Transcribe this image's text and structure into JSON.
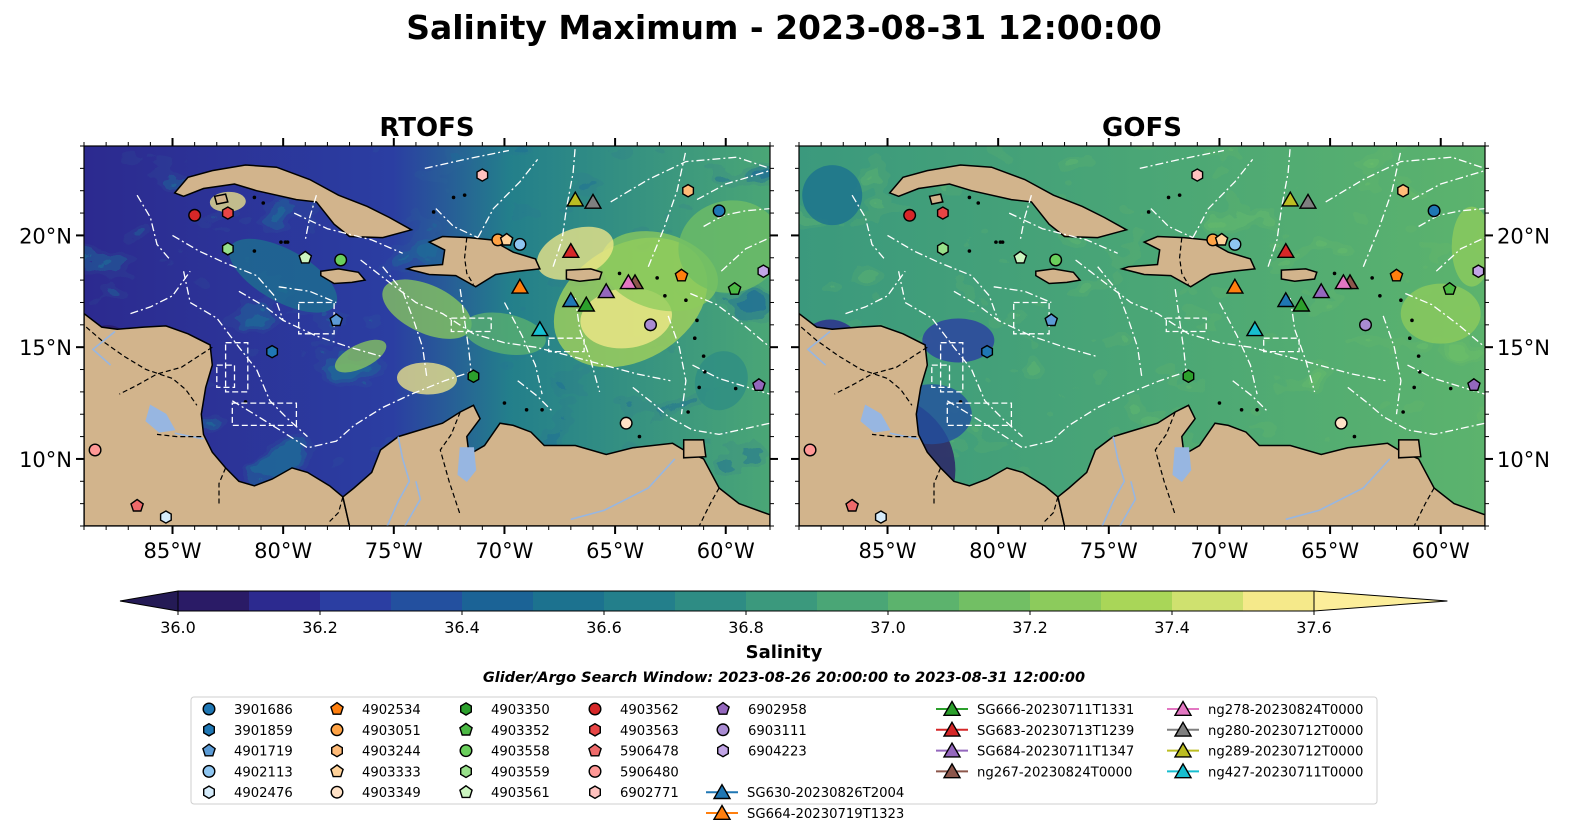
{
  "figure": {
    "title": "Salinity Maximum - 2023-08-31 12:00:00",
    "search_window": "Glider/Argo Search Window: 2023-08-26 20:00:00 to 2023-08-31 12:00:00"
  },
  "colors": {
    "land": "#d2b48c",
    "water_features": "#97b6e1",
    "eez_lines": "#ffffff",
    "coast": "#000000"
  },
  "chart_data": {
    "type": "heatmap",
    "variable": "Salinity",
    "extent": {
      "lon": [
        -89,
        -58
      ],
      "lat": [
        7,
        24
      ]
    },
    "panels": [
      {
        "title": "RTOFS",
        "model": "rtofs",
        "ytick_side": "left"
      },
      {
        "title": "GOFS",
        "model": "gofs",
        "ytick_side": "right"
      }
    ],
    "xticks": [
      -85,
      -80,
      -75,
      -70,
      -65,
      -60
    ],
    "xtick_labels": [
      "85°W",
      "80°W",
      "75°W",
      "70°W",
      "65°W",
      "60°W"
    ],
    "yticks": [
      10,
      15,
      20
    ],
    "ytick_labels": [
      "10°N",
      "15°N",
      "20°N"
    ],
    "colorbar": {
      "label": "Salinity",
      "min": 36.0,
      "max": 37.6,
      "step": 0.1,
      "extend": "both",
      "ticks": [
        36.0,
        36.2,
        36.4,
        36.6,
        36.8,
        37.0,
        37.2,
        37.4,
        37.6
      ],
      "tick_labels": [
        "36.0",
        "36.2",
        "36.4",
        "36.6",
        "36.8",
        "37.0",
        "37.2",
        "37.4",
        "37.6"
      ],
      "colors": [
        "#2a1b66",
        "#2c2a8f",
        "#2b3ea2",
        "#23509f",
        "#1b6396",
        "#1c728f",
        "#237f8b",
        "#2e8c84",
        "#3b997d",
        "#4aa676",
        "#5cb36d",
        "#72bf64",
        "#8ccb5c",
        "#a9d658",
        "#cfe16f",
        "#f5e98a"
      ],
      "under_color": "#241a55",
      "over_color": "#fcee9a"
    },
    "legend": {
      "argo": [
        {
          "id": "3901686",
          "marker": "circle",
          "color": "#1f77b4",
          "lon": -60.3,
          "lat": 21.1
        },
        {
          "id": "3901859",
          "marker": "hexagon",
          "color": "#1f77b4",
          "lon": -80.5,
          "lat": 14.8
        },
        {
          "id": "4901719",
          "marker": "pentagon",
          "color": "#5b9bd5",
          "lon": -77.6,
          "lat": 16.2
        },
        {
          "id": "4902113",
          "marker": "circle",
          "color": "#8ec5f0",
          "lon": -69.3,
          "lat": 19.6
        },
        {
          "id": "4902476",
          "marker": "hexagon",
          "color": "#d6ecfb",
          "lon": -85.3,
          "lat": 7.4
        },
        {
          "id": "4902534",
          "marker": "pentagon",
          "color": "#ff7f0e",
          "lon": -62.0,
          "lat": 18.2
        },
        {
          "id": "4903051",
          "marker": "circle",
          "color": "#ffa345",
          "lon": -70.3,
          "lat": 19.8
        },
        {
          "id": "4903244",
          "marker": "hexagon",
          "color": "#ffbb78",
          "lon": -61.7,
          "lat": 22.0
        },
        {
          "id": "4903333",
          "marker": "pentagon",
          "color": "#ffd29a",
          "lon": -69.9,
          "lat": 19.8
        },
        {
          "id": "4903349",
          "marker": "circle",
          "color": "#ffe2c7",
          "lon": -64.5,
          "lat": 11.6
        },
        {
          "id": "4903350",
          "marker": "hexagon",
          "color": "#2ca02c",
          "lon": -71.4,
          "lat": 13.7
        },
        {
          "id": "4903352",
          "marker": "pentagon",
          "color": "#4cb944",
          "lon": -59.6,
          "lat": 17.6
        },
        {
          "id": "4903558",
          "marker": "circle",
          "color": "#6acf5c",
          "lon": -77.4,
          "lat": 18.9
        },
        {
          "id": "4903559",
          "marker": "hexagon",
          "color": "#98df8a",
          "lon": -82.5,
          "lat": 19.4
        },
        {
          "id": "4903561",
          "marker": "pentagon",
          "color": "#ccf5c0",
          "lon": -79.0,
          "lat": 19.0
        },
        {
          "id": "4903562",
          "marker": "circle",
          "color": "#d62728",
          "lon": -84.0,
          "lat": 20.9
        },
        {
          "id": "4903563",
          "marker": "hexagon",
          "color": "#e84545",
          "lon": -82.5,
          "lat": 21.0
        },
        {
          "id": "5906478",
          "marker": "pentagon",
          "color": "#ee6a6a",
          "lon": -86.6,
          "lat": 7.9
        },
        {
          "id": "5906480",
          "marker": "circle",
          "color": "#ff9896",
          "lon": -88.5,
          "lat": 10.4
        },
        {
          "id": "6902771",
          "marker": "hexagon",
          "color": "#ffc2bf",
          "lon": -71.0,
          "lat": 22.7
        },
        {
          "id": "6902958",
          "marker": "pentagon",
          "color": "#9467bd",
          "lon": -58.5,
          "lat": 13.3
        },
        {
          "id": "6903111",
          "marker": "circle",
          "color": "#a98bd2",
          "lon": -63.4,
          "lat": 16.0
        },
        {
          "id": "6904223",
          "marker": "hexagon",
          "color": "#c2a5e6",
          "lon": -58.3,
          "lat": 18.4
        }
      ],
      "gliders": [
        {
          "id": "SG630-20230826T2004",
          "color": "#1f77b4",
          "lon": -67.0,
          "lat": 17.1
        },
        {
          "id": "SG664-20230719T1323",
          "color": "#ff7f0e",
          "lon": -69.3,
          "lat": 17.7
        },
        {
          "id": "SG666-20230711T1331",
          "color": "#2ca02c",
          "lon": -66.3,
          "lat": 16.9
        },
        {
          "id": "SG683-20230713T1239",
          "color": "#d62728",
          "lon": -67.0,
          "lat": 19.3
        },
        {
          "id": "SG684-20230711T1347",
          "color": "#9467bd",
          "lon": -65.4,
          "lat": 17.5
        },
        {
          "id": "ng267-20230824T0000",
          "color": "#8c564b",
          "lon": -64.1,
          "lat": 17.9
        },
        {
          "id": "ng278-20230824T0000",
          "color": "#e377c2",
          "lon": -64.4,
          "lat": 17.9
        },
        {
          "id": "ng280-20230712T0000",
          "color": "#7f7f7f",
          "lon": -66.0,
          "lat": 21.5
        },
        {
          "id": "ng289-20230712T0000",
          "color": "#bcbd22",
          "lon": -66.8,
          "lat": 21.6
        },
        {
          "id": "ng427-20230711T0000",
          "color": "#17becf",
          "lon": -68.4,
          "lat": 15.8
        }
      ]
    }
  }
}
